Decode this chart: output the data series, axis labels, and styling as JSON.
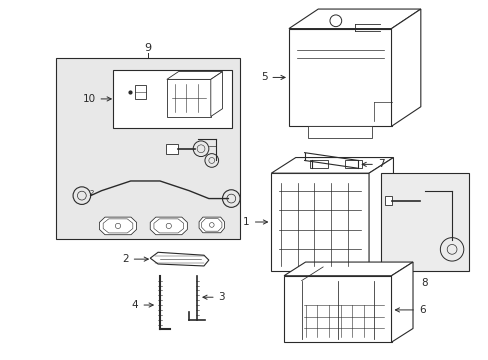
{
  "bg_color": "#ffffff",
  "line_color": "#2a2a2a",
  "label_color": "#000000",
  "fig_width": 4.89,
  "fig_height": 3.6,
  "dpi": 100,
  "box9_bg": "#e8e8e8",
  "box8_bg": "#ececec",
  "box10_bg": "#ffffff"
}
